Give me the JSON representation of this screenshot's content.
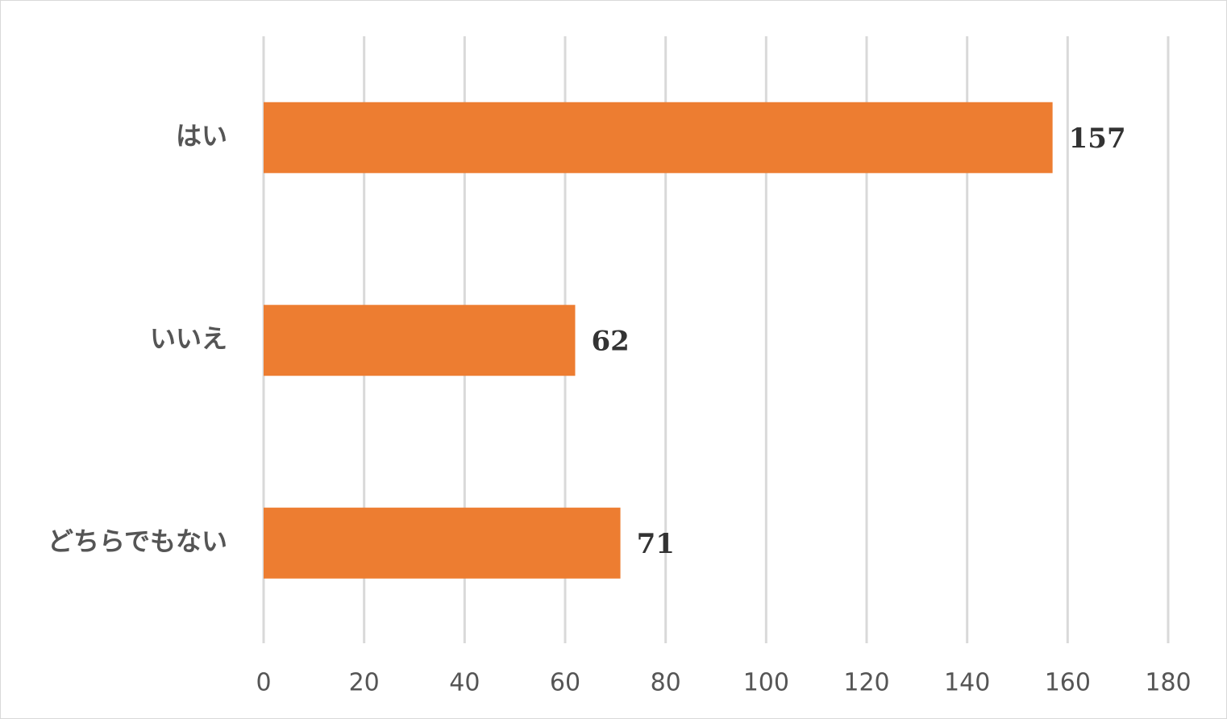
{
  "chart_data": {
    "type": "bar",
    "orientation": "horizontal",
    "categories": [
      "はい",
      "いいえ",
      "どちらでもない"
    ],
    "values": [
      157,
      62,
      71
    ],
    "color": "#ed7d31",
    "xlim": [
      0,
      180
    ],
    "xticks": [
      0,
      20,
      40,
      60,
      80,
      100,
      120,
      140,
      160,
      180
    ],
    "grid": true
  }
}
